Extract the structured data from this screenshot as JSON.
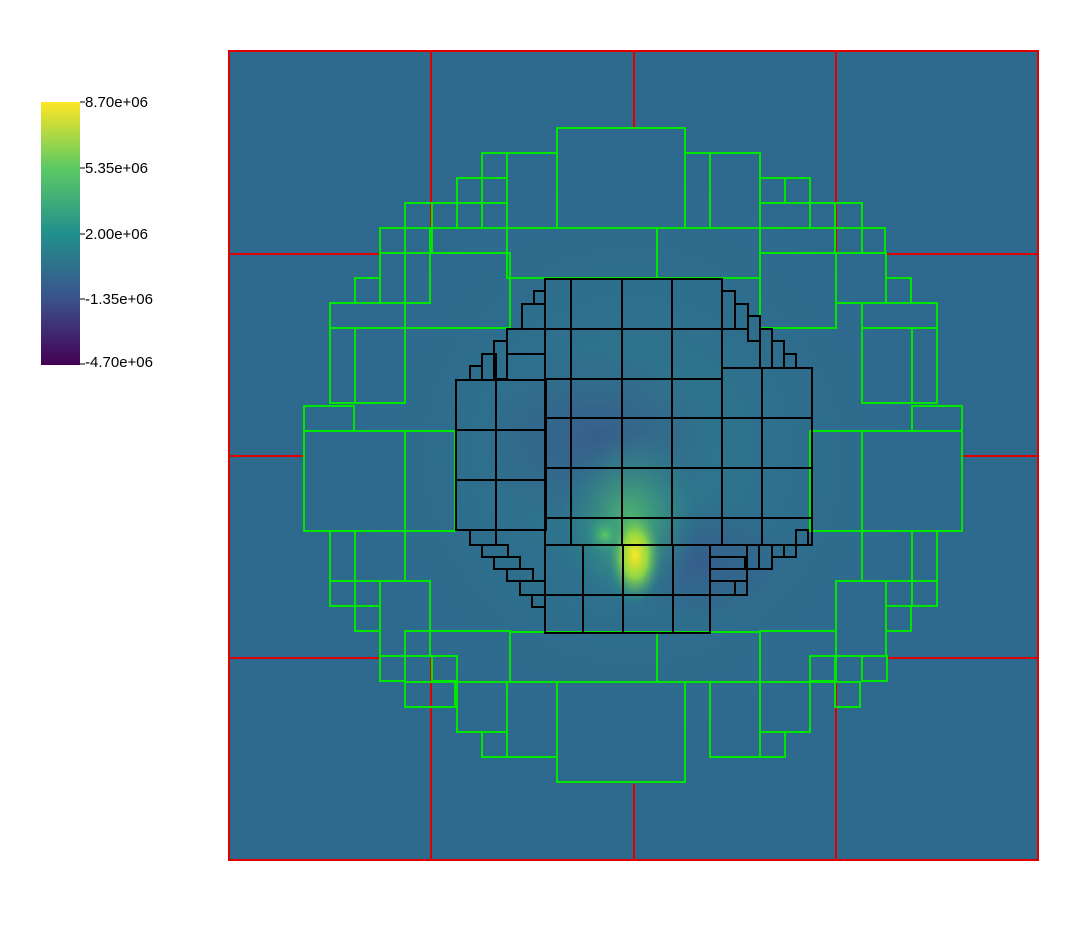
{
  "colors": {
    "background": "#ffffff",
    "field_base": "#2e6a8e",
    "amr_level_0": "#e00000",
    "amr_level_1": "#00e600",
    "amr_level_2": "#000000",
    "colormap": [
      "#440154",
      "#3b528b",
      "#21908d",
      "#5dc963",
      "#fde725"
    ]
  },
  "colorbar": {
    "colormap": "viridis",
    "ticks": [
      "8.70e+06",
      "5.35e+06",
      "2.00e+06",
      "-1.35e+06",
      "-4.70e+06"
    ],
    "range": [
      -4700000,
      8700000
    ]
  },
  "chart_data": {
    "type": "heatmap",
    "title": "",
    "colorbar_range": [
      -4700000,
      8700000
    ],
    "colorbar_ticks": [
      8700000,
      5350000,
      2000000,
      -1350000,
      -4700000
    ],
    "domain_grid": {
      "level_0_blocks": "4 x 4"
    },
    "amr_levels": [
      {
        "level": 0,
        "color": "red"
      },
      {
        "level": 1,
        "color": "green"
      },
      {
        "level": 2,
        "color": "black"
      }
    ],
    "peak_value_region": "lower-center of the refined region"
  }
}
